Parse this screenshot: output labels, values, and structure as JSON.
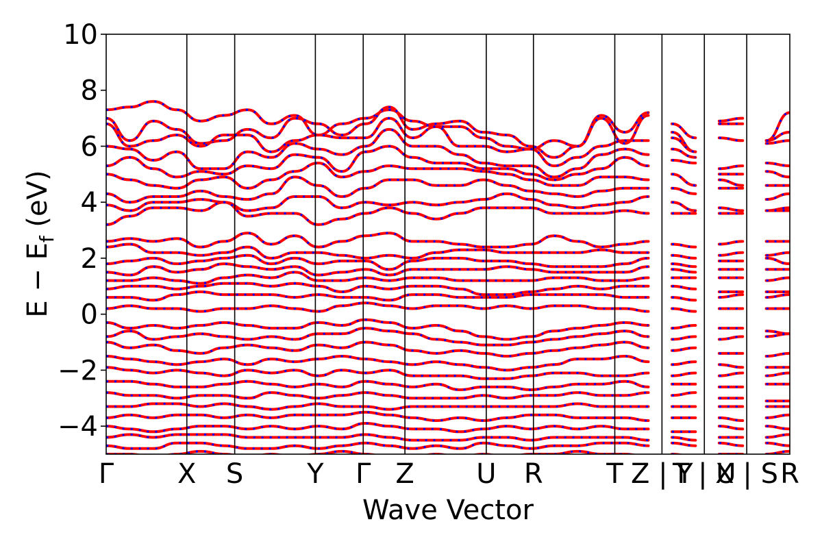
{
  "chart_data": {
    "type": "line",
    "title": "",
    "xlabel": "Wave Vector",
    "ylabel": "E − E",
    "ylabel_subscript": "f",
    "ylabel_suffix": " (eV)",
    "ylim": [
      -5,
      10
    ],
    "yticks": [
      -4,
      -2,
      0,
      2,
      4,
      6,
      8,
      10
    ],
    "ytick_labels": [
      "−4",
      "−2",
      "0",
      "2",
      "4",
      "6",
      "8",
      "10"
    ],
    "grid": false,
    "legend": "none",
    "kpath": [
      {
        "label": "Γ",
        "x": 0.0
      },
      {
        "label": "X",
        "x": 0.118
      },
      {
        "label": "S",
        "x": 0.188
      },
      {
        "label": "Y",
        "x": 0.306
      },
      {
        "label": "Γ",
        "x": 0.376
      },
      {
        "label": "Z",
        "x": 0.437
      },
      {
        "label": "U",
        "x": 0.556
      },
      {
        "label": "R",
        "x": 0.625
      },
      {
        "label": "T",
        "x": 0.744
      },
      {
        "label": "Z | Y",
        "x": 0.813
      },
      {
        "label": "T | U",
        "x": 0.875
      },
      {
        "label": "X | S",
        "x": 0.937
      },
      {
        "label": "R",
        "x": 1.0
      }
    ],
    "segments": [
      [
        0.0,
        0.813
      ],
      [
        0.813,
        0.875
      ],
      [
        0.875,
        0.937
      ],
      [
        0.937,
        1.0
      ]
    ],
    "series": [
      {
        "color": "#ff0000",
        "style": "solid"
      },
      {
        "color": "#0000ff",
        "style": "dotted"
      }
    ],
    "bands": [
      [
        7.3,
        7.4,
        7.6,
        7.3,
        6.9,
        7.1,
        7.3,
        6.8,
        7.1,
        6.4,
        6.8,
        7.0,
        7.3,
        6.9,
        6.7,
        6.7,
        6.3,
        6.0,
        5.9,
        6.2,
        6.0,
        7.1,
        6.5,
        7.2,
        6.8,
        6.3,
        6.9,
        7.0,
        6.2,
        7.2
      ],
      [
        7.0,
        6.2,
        6.9,
        6.6,
        6.1,
        6.2,
        6.6,
        6.3,
        7.0,
        6.8,
        6.4,
        6.8,
        7.4,
        6.6,
        6.8,
        6.9,
        6.5,
        6.4,
        6.0,
        5.6,
        6.0,
        7.0,
        6.1,
        7.1,
        6.5,
        5.8,
        6.8,
        6.8,
        6.2,
        6.5
      ],
      [
        6.8,
        6.0,
        6.2,
        6.4,
        6.0,
        6.4,
        6.4,
        5.8,
        6.2,
        6.4,
        6.3,
        6.3,
        7.0,
        6.3,
        6.7,
        6.0,
        6.0,
        5.8,
        5.9,
        5.3,
        5.6,
        6.0,
        6.2,
        6.2,
        6.3,
        5.8,
        6.3,
        6.2,
        6.1,
        6.2
      ],
      [
        6.0,
        5.9,
        5.5,
        5.8,
        5.2,
        5.2,
        5.8,
        5.6,
        6.1,
        5.9,
        5.7,
        6.0,
        6.6,
        6.0,
        6.0,
        5.7,
        5.4,
        5.3,
        5.3,
        4.9,
        5.2,
        5.7,
        5.9,
        5.7,
        5.9,
        5.6,
        5.2,
        5.3,
        5.4,
        5.3
      ],
      [
        5.3,
        5.6,
        5.2,
        4.9,
        5.1,
        5.0,
        5.3,
        5.2,
        5.7,
        5.6,
        5.1,
        5.8,
        6.0,
        5.6,
        5.4,
        5.4,
        5.2,
        5.2,
        5.0,
        4.8,
        5.0,
        5.2,
        5.6,
        5.3,
        5.5,
        5.4,
        5.0,
        5.0,
        5.1,
        4.9
      ],
      [
        5.0,
        4.8,
        4.6,
        4.5,
        4.8,
        4.9,
        4.5,
        4.8,
        5.1,
        5.4,
        4.9,
        5.1,
        5.3,
        5.2,
        5.2,
        5.2,
        5.1,
        5.0,
        4.8,
        4.6,
        4.6,
        4.9,
        4.9,
        4.8,
        5.0,
        4.6,
        4.8,
        4.6,
        4.6,
        4.6
      ],
      [
        4.3,
        4.0,
        4.2,
        4.2,
        4.4,
        4.2,
        4.1,
        4.3,
        4.9,
        4.6,
        4.2,
        4.5,
        4.8,
        4.8,
        4.6,
        4.6,
        4.8,
        4.6,
        4.4,
        4.3,
        4.2,
        4.4,
        4.5,
        4.5,
        4.5,
        4.3,
        4.5,
        4.5,
        4.1,
        4.3
      ],
      [
        3.9,
        3.7,
        4.0,
        4.0,
        4.1,
        4.0,
        3.7,
        3.8,
        4.2,
        4.2,
        3.8,
        4.0,
        3.9,
        4.0,
        3.9,
        4.0,
        4.1,
        4.3,
        4.1,
        3.9,
        3.8,
        3.9,
        4.0,
        4.2,
        4.0,
        3.7,
        3.8,
        3.7,
        3.7,
        3.8
      ],
      [
        3.2,
        3.5,
        3.8,
        3.8,
        3.7,
        4.0,
        3.5,
        3.6,
        3.6,
        3.2,
        3.4,
        3.6,
        3.8,
        3.6,
        3.4,
        3.6,
        3.8,
        3.8,
        3.8,
        3.6,
        3.6,
        3.6,
        3.7,
        3.6,
        3.6,
        3.6,
        3.6,
        3.6,
        3.7,
        3.7
      ],
      [
        2.6,
        2.7,
        2.6,
        2.7,
        2.4,
        2.6,
        2.9,
        2.5,
        2.8,
        2.4,
        2.6,
        2.8,
        2.9,
        2.6,
        2.6,
        2.5,
        2.4,
        2.4,
        2.5,
        2.8,
        2.6,
        2.4,
        2.5,
        2.6,
        2.5,
        2.4,
        2.5,
        2.6,
        2.6,
        2.6
      ],
      [
        2.4,
        2.5,
        2.2,
        2.2,
        2.1,
        2.2,
        2.4,
        2.0,
        2.2,
        2.2,
        2.1,
        2.0,
        2.1,
        2.0,
        2.2,
        2.3,
        2.3,
        2.2,
        2.2,
        2.2,
        2.2,
        2.3,
        2.2,
        2.2,
        2.1,
        2.0,
        2.1,
        2.2,
        2.1,
        2.2
      ],
      [
        1.8,
        1.9,
        2.0,
        1.8,
        1.9,
        2.0,
        2.1,
        1.8,
        2.0,
        1.8,
        1.9,
        1.9,
        1.6,
        1.9,
        2.0,
        2.0,
        1.9,
        1.9,
        1.8,
        1.7,
        1.7,
        1.7,
        1.8,
        2.0,
        1.8,
        1.7,
        1.9,
        1.9,
        2.0,
        1.8
      ],
      [
        1.5,
        1.4,
        1.7,
        1.5,
        1.6,
        1.8,
        1.7,
        1.6,
        1.7,
        1.4,
        1.5,
        1.6,
        1.4,
        1.6,
        1.6,
        1.6,
        1.6,
        1.7,
        1.6,
        1.5,
        1.5,
        1.5,
        1.5,
        1.7,
        1.6,
        1.5,
        1.6,
        1.6,
        1.6,
        1.6
      ],
      [
        1.2,
        1.2,
        1.3,
        1.2,
        1.1,
        1.3,
        1.4,
        1.3,
        1.5,
        1.2,
        1.2,
        1.3,
        1.2,
        1.3,
        1.3,
        1.2,
        1.2,
        1.2,
        1.2,
        1.3,
        1.3,
        1.2,
        1.2,
        1.3,
        1.3,
        1.3,
        1.3,
        1.3,
        1.2,
        1.3
      ],
      [
        0.9,
        1.0,
        1.0,
        0.9,
        1.0,
        1.1,
        1.1,
        1.0,
        1.1,
        1.0,
        0.8,
        1.0,
        0.9,
        1.0,
        1.0,
        0.9,
        0.7,
        0.7,
        0.8,
        0.9,
        1.0,
        0.9,
        1.0,
        1.0,
        1.0,
        0.9,
        0.8,
        0.8,
        0.8,
        0.8
      ],
      [
        0.6,
        0.6,
        0.5,
        0.7,
        0.8,
        0.7,
        0.7,
        0.7,
        0.6,
        0.7,
        0.6,
        0.6,
        0.5,
        0.7,
        0.7,
        0.6,
        0.6,
        0.6,
        0.7,
        0.7,
        0.7,
        0.7,
        0.6,
        0.6,
        0.6,
        0.5,
        0.6,
        0.7,
        0.6,
        0.7
      ],
      [
        0.2,
        0.3,
        0.2,
        0.2,
        0.1,
        0.2,
        0.2,
        0.3,
        0.2,
        0.1,
        0.3,
        0.4,
        0.3,
        0.2,
        0.3,
        0.3,
        0.2,
        0.3,
        0.2,
        0.3,
        0.3,
        0.2,
        0.2,
        0.1,
        0.2,
        0.1,
        0.2,
        0.2,
        0.2,
        0.2
      ],
      [
        -0.3,
        -0.5,
        -0.4,
        -0.5,
        -0.4,
        -0.3,
        -0.4,
        -0.5,
        -0.5,
        -0.3,
        -0.4,
        -0.2,
        -0.3,
        -0.5,
        -0.4,
        -0.6,
        -0.8,
        -0.9,
        -0.8,
        -0.6,
        -0.5,
        -0.4,
        -0.3,
        -0.4,
        -0.5,
        -0.4,
        -0.5,
        -0.5,
        -0.6,
        -0.7
      ],
      [
        -0.8,
        -0.6,
        -0.9,
        -0.8,
        -0.7,
        -0.8,
        -0.9,
        -0.8,
        -0.9,
        -0.7,
        -0.7,
        -0.5,
        -0.6,
        -0.7,
        -0.9,
        -1.0,
        -1.1,
        -1.1,
        -1.0,
        -0.9,
        -0.8,
        -0.7,
        -0.6,
        -0.8,
        -0.9,
        -0.8,
        -0.9,
        -0.8,
        -0.8,
        -0.7
      ],
      [
        -1.0,
        -1.2,
        -1.1,
        -1.3,
        -1.4,
        -1.2,
        -1.1,
        -1.2,
        -1.3,
        -1.1,
        -1.2,
        -1.0,
        -1.1,
        -1.3,
        -1.4,
        -1.3,
        -1.4,
        -1.5,
        -1.4,
        -1.3,
        -1.2,
        -1.1,
        -1.0,
        -1.2,
        -1.3,
        -1.2,
        -1.4,
        -1.4,
        -1.5,
        -1.4
      ],
      [
        -1.5,
        -1.6,
        -1.7,
        -1.8,
        -1.7,
        -1.6,
        -1.8,
        -1.6,
        -1.7,
        -1.6,
        -1.5,
        -1.6,
        -1.7,
        -1.8,
        -1.7,
        -1.8,
        -1.9,
        -2.0,
        -1.9,
        -1.8,
        -1.6,
        -1.6,
        -1.5,
        -1.7,
        -1.8,
        -1.7,
        -1.8,
        -1.9,
        -1.9,
        -1.9
      ],
      [
        -1.9,
        -2.0,
        -2.1,
        -2.0,
        -2.1,
        -2.2,
        -2.0,
        -2.1,
        -2.0,
        -2.2,
        -2.0,
        -2.1,
        -2.0,
        -2.2,
        -2.2,
        -2.2,
        -2.3,
        -2.3,
        -2.2,
        -2.1,
        -2.1,
        -2.2,
        -2.2,
        -2.1,
        -2.2,
        -2.1,
        -2.2,
        -2.1,
        -2.2,
        -2.1
      ],
      [
        -2.4,
        -2.4,
        -2.5,
        -2.6,
        -2.6,
        -2.5,
        -2.4,
        -2.5,
        -2.6,
        -2.5,
        -2.6,
        -2.4,
        -2.5,
        -2.6,
        -2.5,
        -2.7,
        -2.6,
        -2.6,
        -2.7,
        -2.6,
        -2.5,
        -2.5,
        -2.4,
        -2.6,
        -2.5,
        -2.5,
        -2.6,
        -2.6,
        -2.5,
        -2.5
      ],
      [
        -2.8,
        -2.9,
        -2.9,
        -3.0,
        -2.9,
        -2.9,
        -3.0,
        -2.8,
        -2.9,
        -3.0,
        -2.9,
        -2.8,
        -2.9,
        -3.0,
        -3.0,
        -3.0,
        -2.9,
        -3.0,
        -2.9,
        -2.9,
        -2.8,
        -2.9,
        -2.9,
        -2.8,
        -2.9,
        -2.8,
        -3.0,
        -3.0,
        -3.1,
        -3.1
      ],
      [
        -3.3,
        -3.3,
        -3.2,
        -3.2,
        -3.3,
        -3.2,
        -3.3,
        -3.4,
        -3.3,
        -3.2,
        -3.3,
        -3.3,
        -3.4,
        -3.3,
        -3.3,
        -3.3,
        -3.3,
        -3.3,
        -3.3,
        -3.3,
        -3.2,
        -3.3,
        -3.3,
        -3.3,
        -3.3,
        -3.3,
        -3.3,
        -3.3,
        -3.3,
        -3.3
      ],
      [
        -3.7,
        -3.6,
        -3.7,
        -3.6,
        -3.6,
        -3.7,
        -3.6,
        -3.7,
        -3.6,
        -3.6,
        -3.6,
        -3.5,
        -3.6,
        -3.7,
        -3.8,
        -3.7,
        -3.8,
        -3.7,
        -3.6,
        -3.6,
        -3.7,
        -3.7,
        -3.7,
        -3.8,
        -3.7,
        -3.7,
        -3.7,
        -3.8,
        -3.7,
        -3.6
      ],
      [
        -4.0,
        -4.1,
        -4.2,
        -4.1,
        -4.0,
        -4.0,
        -4.1,
        -4.0,
        -4.1,
        -4.0,
        -4.1,
        -3.9,
        -4.0,
        -4.1,
        -4.1,
        -4.2,
        -4.1,
        -4.0,
        -4.1,
        -4.0,
        -4.1,
        -4.0,
        -4.1,
        -4.1,
        -4.2,
        -4.2,
        -4.0,
        -4.1,
        -4.0,
        -4.1
      ],
      [
        -4.4,
        -4.3,
        -4.4,
        -4.3,
        -4.3,
        -4.3,
        -4.4,
        -4.4,
        -4.4,
        -4.4,
        -4.4,
        -4.3,
        -4.4,
        -4.5,
        -4.5,
        -4.5,
        -4.4,
        -4.4,
        -4.5,
        -4.4,
        -4.4,
        -4.4,
        -4.4,
        -4.5,
        -4.4,
        -4.5,
        -4.4,
        -4.4,
        -4.4,
        -4.3
      ],
      [
        -4.7,
        -4.8,
        -4.8,
        -4.6,
        -4.6,
        -4.7,
        -4.8,
        -4.8,
        -4.7,
        -4.8,
        -4.7,
        -4.6,
        -4.7,
        -4.8,
        -4.7,
        -4.8,
        -4.6,
        -4.7,
        -4.8,
        -4.7,
        -4.7,
        -4.6,
        -4.6,
        -4.7,
        -4.6,
        -4.7,
        -4.6,
        -4.7,
        -4.6,
        -4.7
      ],
      [
        -5.0,
        -5.0,
        -5.1,
        -5.0,
        -4.9,
        -5.0,
        -5.1,
        -5.0,
        -5.1,
        -5.0,
        -4.9,
        -5.0,
        -5.1,
        -5.1,
        -5.0,
        -5.1,
        -5.0,
        -5.1,
        -5.0,
        -5.0,
        -4.9,
        -5.0,
        -5.0,
        -5.1,
        -5.0,
        -5.1,
        -5.0,
        -5.0,
        -5.0,
        -4.9
      ]
    ]
  }
}
